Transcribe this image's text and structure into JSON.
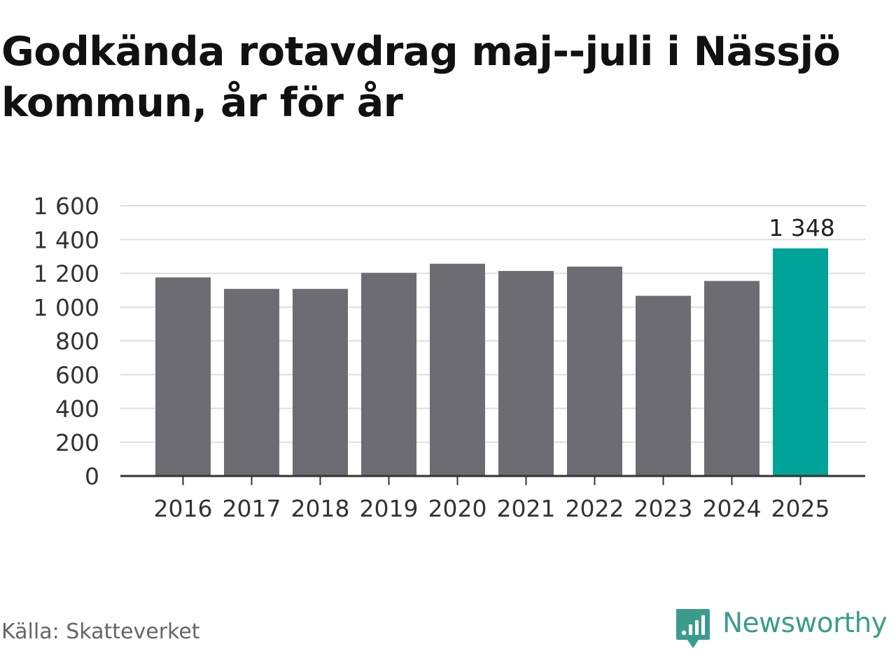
{
  "title": "Godkända rotavdrag maj--juli i Nässjö kommun, år för år",
  "source": "Källa: Skatteverket",
  "brand": {
    "name": "Newsworthy",
    "icon": "newsworthy-logo-icon",
    "color": "#3c9c8c"
  },
  "chart_data": {
    "type": "bar",
    "categories": [
      "2016",
      "2017",
      "2018",
      "2019",
      "2020",
      "2021",
      "2022",
      "2023",
      "2024",
      "2025"
    ],
    "values": [
      1176,
      1108,
      1108,
      1203,
      1257,
      1214,
      1240,
      1067,
      1155,
      1348
    ],
    "value_labels": [
      "",
      "",
      "",
      "",
      "",
      "",
      "",
      "",
      "",
      "1 348"
    ],
    "y_ticks": [
      0,
      200,
      400,
      600,
      800,
      1000,
      1200,
      1400,
      1600
    ],
    "y_tick_labels": [
      "0",
      "200",
      "400",
      "600",
      "800",
      "1 000",
      "1 200",
      "1 400",
      "1 600"
    ],
    "ylim": [
      0,
      1600
    ],
    "xlabel": "",
    "ylabel": "",
    "grid": true,
    "colors": {
      "default": "#6d6c72",
      "highlight": "#00a398",
      "grid": "#dedede",
      "axis": "#333333"
    },
    "highlight_index": 9
  }
}
